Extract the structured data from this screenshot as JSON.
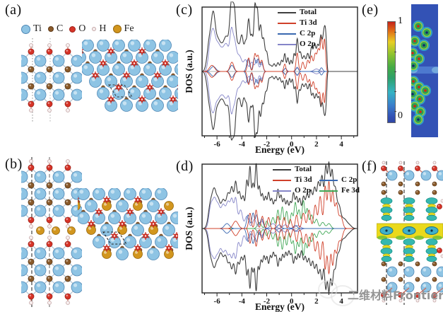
{
  "panels": {
    "a": {
      "label": "(a)"
    },
    "b": {
      "label": "(b)"
    },
    "c": {
      "label": "(c)"
    },
    "d": {
      "label": "(d)"
    },
    "e": {
      "label": "(e)",
      "colorbar": {
        "top_label": "1",
        "bottom_label": "0"
      }
    },
    "f": {
      "label": "(f)"
    }
  },
  "atoms": {
    "legend": [
      {
        "label": "Ti",
        "color": "#8ec4e4"
      },
      {
        "label": "C",
        "color": "#8a5a2a"
      },
      {
        "label": "O",
        "color": "#d63428"
      },
      {
        "label": "H",
        "color": "#f6eded"
      },
      {
        "label": "Fe",
        "color": "#d2961e"
      }
    ]
  },
  "watermark": {
    "text": "二维材料Frontier"
  },
  "chart_data": [
    {
      "id": "c",
      "type": "line",
      "title": "",
      "xlabel": "Energy (eV)",
      "ylabel": "DOS (a.u.)",
      "xlim": [
        -7.2,
        5.3
      ],
      "xticks": [
        "-6",
        "-4",
        "-2",
        "0",
        "2",
        "4"
      ],
      "legend_position": "top-center-column",
      "note": "spin-resolved DOS mirrored about zero; states cut off near +2.85 eV",
      "series": [
        {
          "name": "Total",
          "color": "#3f3f3f",
          "cutoff": 2.85,
          "peaks": [
            [
              -6.6,
              0.5,
              0.18
            ],
            [
              -6.3,
              0.72,
              0.15
            ],
            [
              -6.0,
              0.4,
              0.2
            ],
            [
              -5.6,
              0.35,
              0.25
            ],
            [
              -5.2,
              0.45,
              0.2
            ],
            [
              -4.85,
              0.95,
              0.13
            ],
            [
              -4.6,
              0.85,
              0.12
            ],
            [
              -4.3,
              0.4,
              0.15
            ],
            [
              -4.0,
              0.52,
              0.12
            ],
            [
              -3.7,
              0.45,
              0.12
            ],
            [
              -3.45,
              0.78,
              0.1
            ],
            [
              -3.2,
              0.55,
              0.1
            ],
            [
              -2.95,
              1.0,
              0.09
            ],
            [
              -2.75,
              0.92,
              0.09
            ],
            [
              -2.5,
              0.72,
              0.1
            ],
            [
              -2.25,
              0.5,
              0.1
            ],
            [
              -2.0,
              0.3,
              0.1
            ],
            [
              -1.7,
              0.1,
              0.12
            ],
            [
              -1.4,
              0.12,
              0.1
            ],
            [
              -1.1,
              0.14,
              0.1
            ],
            [
              -0.8,
              0.18,
              0.1
            ],
            [
              -0.55,
              0.28,
              0.08
            ],
            [
              -0.3,
              0.22,
              0.08
            ],
            [
              -0.05,
              0.18,
              0.08
            ],
            [
              0.2,
              0.28,
              0.08
            ],
            [
              0.45,
              0.52,
              0.09
            ],
            [
              0.7,
              0.3,
              0.1
            ],
            [
              1.0,
              0.25,
              0.12
            ],
            [
              1.3,
              0.28,
              0.1
            ],
            [
              1.6,
              0.38,
              0.1
            ],
            [
              1.85,
              0.42,
              0.1
            ],
            [
              2.1,
              0.4,
              0.1
            ],
            [
              2.35,
              0.55,
              0.1
            ],
            [
              2.6,
              0.6,
              0.1
            ],
            [
              2.75,
              0.45,
              0.08
            ]
          ]
        },
        {
          "name": "Ti 3d",
          "color": "#d0402a",
          "cutoff": 2.85,
          "peaks": [
            [
              -6.4,
              0.1,
              0.2
            ],
            [
              -4.8,
              0.15,
              0.15
            ],
            [
              -3.45,
              0.22,
              0.1
            ],
            [
              -2.95,
              0.28,
              0.1
            ],
            [
              -2.7,
              0.25,
              0.1
            ],
            [
              -2.4,
              0.18,
              0.1
            ],
            [
              -0.55,
              0.12,
              0.08
            ],
            [
              0.45,
              0.3,
              0.09
            ],
            [
              0.9,
              0.15,
              0.1
            ],
            [
              1.3,
              0.18,
              0.1
            ],
            [
              1.6,
              0.25,
              0.1
            ],
            [
              1.9,
              0.28,
              0.1
            ],
            [
              2.15,
              0.35,
              0.1
            ],
            [
              2.4,
              0.55,
              0.09
            ],
            [
              2.65,
              0.52,
              0.08
            ]
          ]
        },
        {
          "name": "C 2p",
          "color": "#3a68b0",
          "cutoff": 2.85,
          "peaks": [
            [
              -6.3,
              0.08,
              0.2
            ],
            [
              -4.8,
              0.1,
              0.15
            ],
            [
              -3.5,
              0.2,
              0.12
            ],
            [
              -3.0,
              0.22,
              0.1
            ],
            [
              -2.7,
              0.2,
              0.1
            ],
            [
              -2.4,
              0.15,
              0.1
            ],
            [
              -0.5,
              0.05,
              0.1
            ],
            [
              0.45,
              0.06,
              0.1
            ],
            [
              2.4,
              0.06,
              0.1
            ]
          ]
        },
        {
          "name": "O 2p",
          "color": "#8585c8",
          "cutoff": 2.85,
          "peaks": [
            [
              -6.55,
              0.4,
              0.15
            ],
            [
              -6.3,
              0.48,
              0.15
            ],
            [
              -6.0,
              0.35,
              0.2
            ],
            [
              -5.6,
              0.3,
              0.25
            ],
            [
              -5.2,
              0.35,
              0.2
            ],
            [
              -4.85,
              0.52,
              0.12
            ],
            [
              -4.6,
              0.45,
              0.15
            ],
            [
              -4.2,
              0.25,
              0.2
            ],
            [
              -3.7,
              0.18,
              0.15
            ],
            [
              -3.2,
              0.15,
              0.15
            ],
            [
              -2.8,
              0.18,
              0.12
            ],
            [
              -2.4,
              0.12,
              0.12
            ],
            [
              -0.5,
              0.05,
              0.1
            ],
            [
              0.45,
              0.07,
              0.1
            ],
            [
              2.0,
              0.04,
              0.2
            ]
          ]
        }
      ]
    },
    {
      "id": "d",
      "type": "line",
      "title": "",
      "xlabel": "Energy (eV)",
      "ylabel": "DOS (a.u.)",
      "xlim": [
        -7.2,
        5.3
      ],
      "xticks": [
        "-6",
        "-4",
        "-2",
        "0",
        "2",
        "4"
      ],
      "legend_position": "top-center-grid",
      "note": "metallic spin-resolved DOS mirrored about zero",
      "series": [
        {
          "name": "Total",
          "color": "#3f3f3f",
          "peaks": [
            [
              -6.5,
              0.42,
              0.18
            ],
            [
              -6.2,
              0.5,
              0.15
            ],
            [
              -5.9,
              0.4,
              0.15
            ],
            [
              -5.5,
              0.45,
              0.18
            ],
            [
              -5.1,
              0.52,
              0.15
            ],
            [
              -4.8,
              0.58,
              0.12
            ],
            [
              -4.5,
              0.72,
              0.12
            ],
            [
              -4.2,
              0.55,
              0.12
            ],
            [
              -3.9,
              0.5,
              0.12
            ],
            [
              -3.6,
              0.75,
              0.1
            ],
            [
              -3.35,
              0.95,
              0.09
            ],
            [
              -3.1,
              0.7,
              0.1
            ],
            [
              -2.85,
              1.0,
              0.09
            ],
            [
              -2.6,
              0.65,
              0.1
            ],
            [
              -2.35,
              0.52,
              0.1
            ],
            [
              -2.1,
              0.48,
              0.1
            ],
            [
              -1.85,
              0.55,
              0.1
            ],
            [
              -1.6,
              0.45,
              0.1
            ],
            [
              -1.35,
              0.42,
              0.1
            ],
            [
              -1.1,
              0.6,
              0.1
            ],
            [
              -0.85,
              0.5,
              0.1
            ],
            [
              -0.6,
              0.45,
              0.1
            ],
            [
              -0.35,
              0.42,
              0.1
            ],
            [
              -0.1,
              0.4,
              0.1
            ],
            [
              0.15,
              0.55,
              0.1
            ],
            [
              0.4,
              0.48,
              0.1
            ],
            [
              0.65,
              0.45,
              0.1
            ],
            [
              0.95,
              0.5,
              0.12
            ],
            [
              1.25,
              0.52,
              0.12
            ],
            [
              1.55,
              0.58,
              0.12
            ],
            [
              1.85,
              0.62,
              0.12
            ],
            [
              2.15,
              0.7,
              0.12
            ],
            [
              2.45,
              0.82,
              0.12
            ],
            [
              2.75,
              0.95,
              0.1
            ],
            [
              3.0,
              1.0,
              0.1
            ],
            [
              3.25,
              0.85,
              0.1
            ],
            [
              3.5,
              0.6,
              0.12
            ],
            [
              3.8,
              0.35,
              0.15
            ],
            [
              4.2,
              0.15,
              0.2
            ],
            [
              4.6,
              0.06,
              0.2
            ]
          ]
        },
        {
          "name": "Ti 3d",
          "color": "#d0402a",
          "peaks": [
            [
              -4.5,
              0.12,
              0.2
            ],
            [
              -3.35,
              0.25,
              0.1
            ],
            [
              -2.85,
              0.3,
              0.1
            ],
            [
              -2.35,
              0.2,
              0.1
            ],
            [
              -1.85,
              0.18,
              0.1
            ],
            [
              -1.1,
              0.2,
              0.1
            ],
            [
              -0.6,
              0.18,
              0.1
            ],
            [
              -0.1,
              0.15,
              0.1
            ],
            [
              0.4,
              0.22,
              0.1
            ],
            [
              0.95,
              0.25,
              0.12
            ],
            [
              1.4,
              0.3,
              0.12
            ],
            [
              1.9,
              0.38,
              0.12
            ],
            [
              2.3,
              0.52,
              0.12
            ],
            [
              2.7,
              0.68,
              0.1
            ],
            [
              3.0,
              0.75,
              0.1
            ],
            [
              3.3,
              0.6,
              0.1
            ],
            [
              3.6,
              0.4,
              0.12
            ],
            [
              3.95,
              0.2,
              0.15
            ]
          ]
        },
        {
          "name": "C 2p",
          "color": "#3a68b0",
          "peaks": [
            [
              -5.2,
              0.08,
              0.2
            ],
            [
              -3.5,
              0.22,
              0.12
            ],
            [
              -3.1,
              0.25,
              0.1
            ],
            [
              -2.8,
              0.22,
              0.1
            ],
            [
              -2.4,
              0.16,
              0.12
            ],
            [
              -1.0,
              0.06,
              0.15
            ],
            [
              0.3,
              0.05,
              0.15
            ]
          ]
        },
        {
          "name": "O 2p",
          "color": "#8585c8",
          "peaks": [
            [
              -6.5,
              0.35,
              0.15
            ],
            [
              -6.2,
              0.42,
              0.15
            ],
            [
              -5.9,
              0.32,
              0.15
            ],
            [
              -5.5,
              0.38,
              0.18
            ],
            [
              -5.1,
              0.4,
              0.15
            ],
            [
              -4.8,
              0.42,
              0.12
            ],
            [
              -4.5,
              0.48,
              0.12
            ],
            [
              -4.1,
              0.3,
              0.15
            ],
            [
              -3.6,
              0.2,
              0.15
            ],
            [
              -3.0,
              0.15,
              0.15
            ],
            [
              -2.4,
              0.12,
              0.15
            ],
            [
              -1.5,
              0.08,
              0.2
            ],
            [
              -0.5,
              0.06,
              0.2
            ],
            [
              0.5,
              0.05,
              0.2
            ]
          ]
        },
        {
          "name": "Fe 3d",
          "color": "#42a858",
          "peaks": [
            [
              -2.6,
              0.1,
              0.15
            ],
            [
              -2.0,
              0.12,
              0.12
            ],
            [
              -1.5,
              0.18,
              0.12
            ],
            [
              -1.1,
              0.3,
              0.1
            ],
            [
              -0.75,
              0.35,
              0.1
            ],
            [
              -0.4,
              0.28,
              0.1
            ],
            [
              0.0,
              0.25,
              0.1
            ],
            [
              0.3,
              0.42,
              0.1
            ],
            [
              0.6,
              0.3,
              0.1
            ],
            [
              0.95,
              0.45,
              0.1
            ],
            [
              1.25,
              0.32,
              0.1
            ],
            [
              1.6,
              0.22,
              0.12
            ],
            [
              2.0,
              0.15,
              0.12
            ],
            [
              2.5,
              0.1,
              0.15
            ],
            [
              3.0,
              0.08,
              0.15
            ]
          ]
        }
      ]
    }
  ]
}
